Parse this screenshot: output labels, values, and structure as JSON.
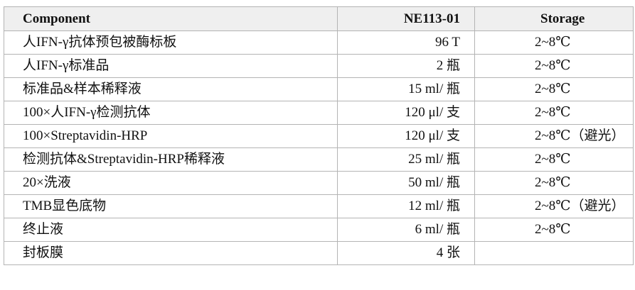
{
  "table": {
    "headers": [
      "Component",
      "NE113-01",
      "Storage"
    ],
    "rows": [
      [
        "人IFN-γ抗体预包被酶标板",
        "96 T",
        "2~8℃"
      ],
      [
        "人IFN-γ标准品",
        "2 瓶",
        "2~8℃"
      ],
      [
        "标准品&样本稀释液",
        "15 ml/ 瓶",
        "2~8℃"
      ],
      [
        "100×人IFN-γ检测抗体",
        "120 μl/ 支",
        "2~8℃"
      ],
      [
        "100×Streptavidin-HRP",
        "120 μl/ 支",
        "2~8℃（避光）"
      ],
      [
        "检测抗体&Streptavidin-HRP稀释液",
        "25 ml/ 瓶",
        "2~8℃"
      ],
      [
        "20×洗液",
        "50 ml/ 瓶",
        "2~8℃"
      ],
      [
        "TMB显色底物",
        "12 ml/ 瓶",
        "2~8℃（避光）"
      ],
      [
        "终止液",
        "6 ml/ 瓶",
        "2~8℃"
      ],
      [
        "封板膜",
        "4 张",
        ""
      ]
    ]
  }
}
